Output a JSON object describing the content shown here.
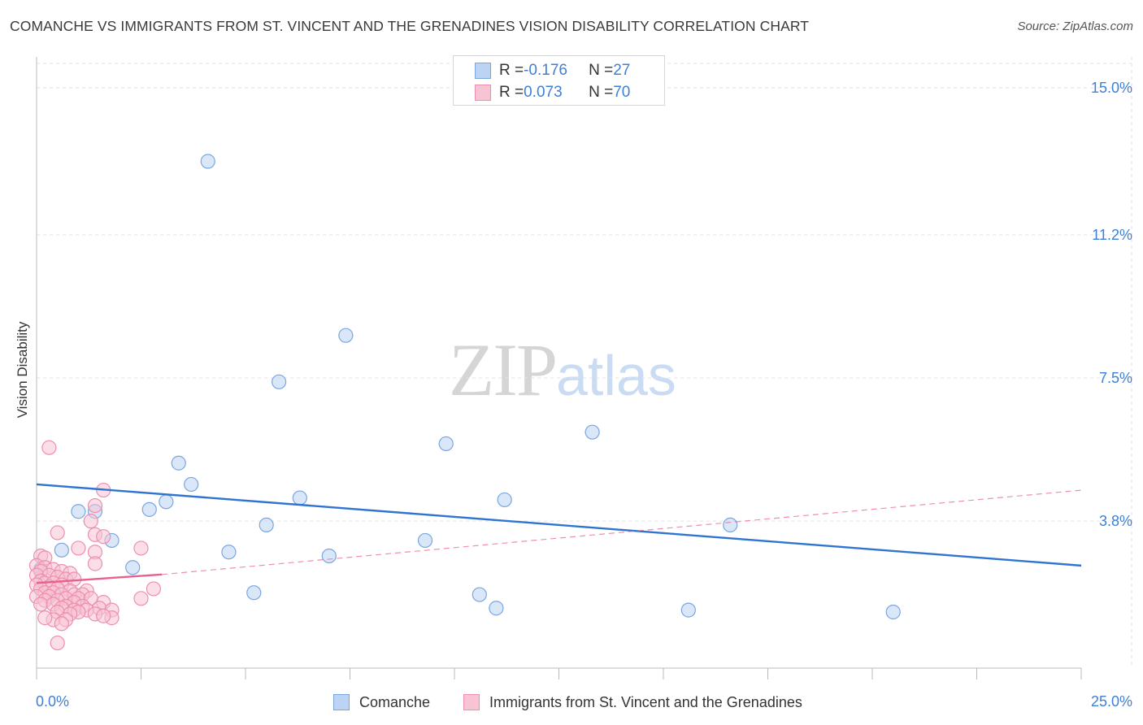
{
  "title": "COMANCHE VS IMMIGRANTS FROM ST. VINCENT AND THE GRENADINES VISION DISABILITY CORRELATION CHART",
  "source": "Source: ZipAtlas.com",
  "watermark": {
    "zip": "ZIP",
    "atlas": "atlas"
  },
  "colors": {
    "comanche_fill": "#bcd3f3",
    "comanche_stroke": "#7aa6e0",
    "comanche_line": "#2f74d0",
    "svg_fill": "#f8c3d3",
    "svg_stroke": "#ec8fae",
    "svg_line": "#e8608c",
    "axis_text": "#3f7fd6",
    "grid": "#e3e3e3"
  },
  "legend": {
    "rows": [
      {
        "r_label": "R = ",
        "r_value": "-0.176",
        "n_label": "N = ",
        "n_value": "27"
      },
      {
        "r_label": "R = ",
        "r_value": "0.073",
        "n_label": "N = ",
        "n_value": "70"
      }
    ]
  },
  "bottom_legend": {
    "comanche": "Comanche",
    "svg": "Immigrants from St. Vincent and the Grenadines"
  },
  "chart_data": {
    "type": "scatter",
    "ylabel": "Vision Disability",
    "xlim": [
      0,
      25
    ],
    "ylim": [
      0,
      15.8
    ],
    "x_tick_labels": [
      {
        "value": 0,
        "label": "0.0%"
      },
      {
        "value": 25,
        "label": "25.0%"
      }
    ],
    "y_ticks": [
      {
        "value": 3.8,
        "label": "3.8%"
      },
      {
        "value": 7.5,
        "label": "7.5%"
      },
      {
        "value": 11.2,
        "label": "11.2%"
      },
      {
        "value": 15.0,
        "label": "15.0%"
      }
    ],
    "grid": true,
    "series": [
      {
        "name": "Comanche",
        "stats": {
          "R": -0.176,
          "N": 27
        },
        "trend": {
          "x": [
            0,
            25
          ],
          "y": [
            4.75,
            2.65
          ]
        },
        "points": [
          [
            4.1,
            13.1
          ],
          [
            7.4,
            8.6
          ],
          [
            5.8,
            7.4
          ],
          [
            9.8,
            5.8
          ],
          [
            13.3,
            6.1
          ],
          [
            3.4,
            5.3
          ],
          [
            3.7,
            4.75
          ],
          [
            6.3,
            4.4
          ],
          [
            11.2,
            4.35
          ],
          [
            2.7,
            4.1
          ],
          [
            3.1,
            4.3
          ],
          [
            1.0,
            4.05
          ],
          [
            1.4,
            4.05
          ],
          [
            5.5,
            3.7
          ],
          [
            1.8,
            3.3
          ],
          [
            0.6,
            3.05
          ],
          [
            4.6,
            3.0
          ],
          [
            7.0,
            2.9
          ],
          [
            9.3,
            3.3
          ],
          [
            2.3,
            2.6
          ],
          [
            0.1,
            2.55
          ],
          [
            5.2,
            1.95
          ],
          [
            10.6,
            1.9
          ],
          [
            11.0,
            1.55
          ],
          [
            16.6,
            3.7
          ],
          [
            15.6,
            1.5
          ],
          [
            20.5,
            1.45
          ]
        ]
      },
      {
        "name": "Immigrants from St. Vincent and the Grenadines",
        "stats": {
          "R": 0.073,
          "N": 70
        },
        "trend": {
          "x": [
            0,
            3.0
          ],
          "y": [
            2.2,
            2.42
          ]
        },
        "trend_extension": {
          "x": [
            3.0,
            25
          ],
          "y": [
            2.42,
            4.6
          ]
        },
        "points": [
          [
            0.3,
            5.7
          ],
          [
            1.6,
            4.6
          ],
          [
            1.4,
            4.2
          ],
          [
            1.3,
            3.8
          ],
          [
            0.5,
            3.5
          ],
          [
            1.4,
            3.45
          ],
          [
            1.6,
            3.4
          ],
          [
            1.0,
            3.1
          ],
          [
            2.5,
            3.1
          ],
          [
            1.4,
            3.0
          ],
          [
            0.1,
            2.9
          ],
          [
            0.2,
            2.85
          ],
          [
            1.4,
            2.7
          ],
          [
            0.0,
            2.65
          ],
          [
            0.2,
            2.6
          ],
          [
            0.4,
            2.55
          ],
          [
            0.1,
            2.5
          ],
          [
            0.6,
            2.5
          ],
          [
            0.8,
            2.45
          ],
          [
            0.0,
            2.4
          ],
          [
            0.3,
            2.4
          ],
          [
            0.5,
            2.35
          ],
          [
            0.7,
            2.3
          ],
          [
            0.9,
            2.3
          ],
          [
            0.1,
            2.25
          ],
          [
            0.2,
            2.2
          ],
          [
            0.4,
            2.2
          ],
          [
            0.0,
            2.15
          ],
          [
            0.6,
            2.15
          ],
          [
            0.3,
            2.1
          ],
          [
            0.1,
            2.05
          ],
          [
            0.5,
            2.05
          ],
          [
            0.8,
            2.0
          ],
          [
            1.2,
            2.0
          ],
          [
            2.8,
            2.05
          ],
          [
            0.2,
            1.95
          ],
          [
            0.4,
            1.95
          ],
          [
            0.6,
            1.9
          ],
          [
            0.9,
            1.9
          ],
          [
            1.1,
            1.9
          ],
          [
            0.0,
            1.85
          ],
          [
            0.3,
            1.85
          ],
          [
            0.7,
            1.8
          ],
          [
            1.0,
            1.8
          ],
          [
            1.3,
            1.8
          ],
          [
            0.2,
            1.75
          ],
          [
            0.5,
            1.75
          ],
          [
            0.9,
            1.7
          ],
          [
            1.6,
            1.7
          ],
          [
            0.1,
            1.65
          ],
          [
            0.4,
            1.65
          ],
          [
            0.7,
            1.6
          ],
          [
            1.1,
            1.6
          ],
          [
            2.5,
            1.8
          ],
          [
            1.5,
            1.55
          ],
          [
            0.6,
            1.55
          ],
          [
            0.9,
            1.5
          ],
          [
            1.2,
            1.5
          ],
          [
            1.8,
            1.5
          ],
          [
            0.5,
            1.45
          ],
          [
            1.0,
            1.45
          ],
          [
            1.4,
            1.4
          ],
          [
            0.8,
            1.4
          ],
          [
            1.8,
            1.3
          ],
          [
            0.4,
            1.25
          ],
          [
            0.7,
            1.25
          ],
          [
            1.6,
            1.35
          ],
          [
            0.2,
            1.3
          ],
          [
            0.6,
            1.15
          ],
          [
            0.5,
            0.65
          ]
        ]
      }
    ]
  }
}
